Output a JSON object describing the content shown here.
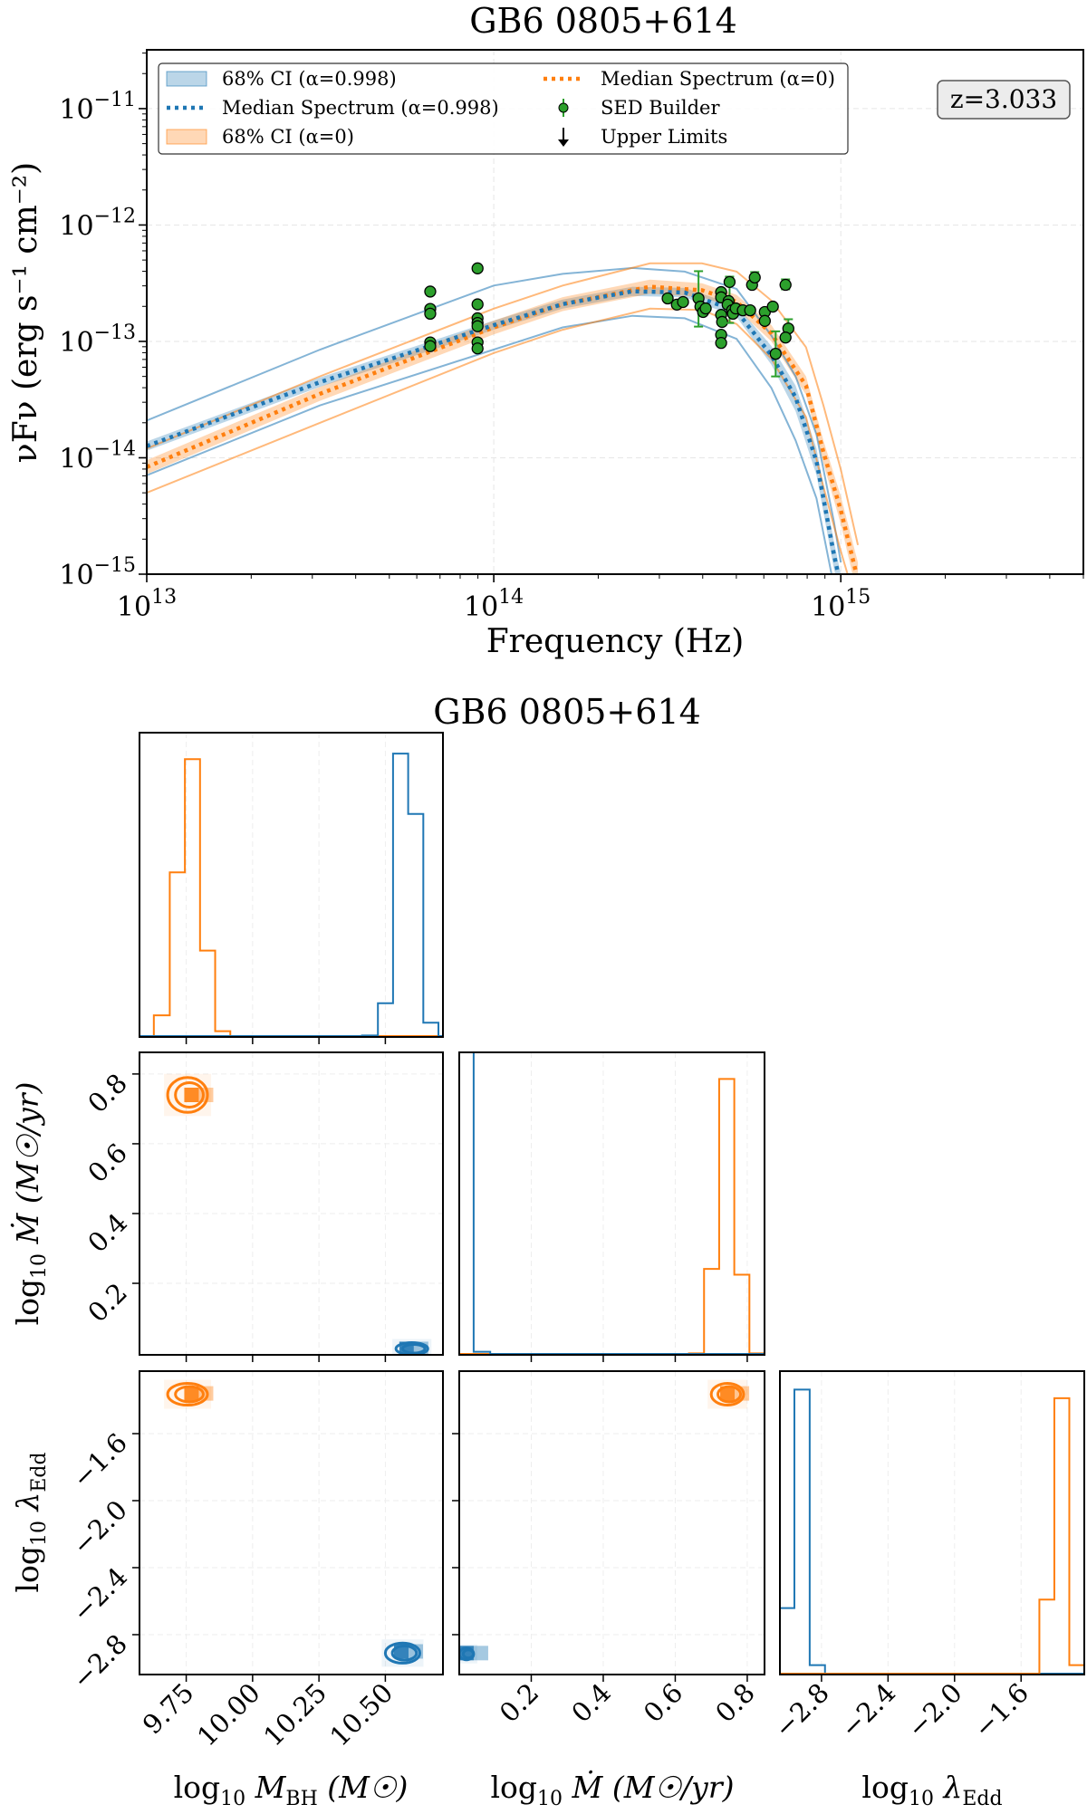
{
  "chart_data": [
    {
      "type": "line",
      "title": "GB6 0805+614",
      "xlabel": "Frequency (Hz)",
      "ylabel": "νFν (erg s⁻¹ cm⁻²)",
      "x_scale": "log",
      "y_scale": "log",
      "xlim": [
        10000000000000.0,
        5000000000000000.0
      ],
      "ylim": [
        1e-15,
        3.2e-11
      ],
      "x_ticks": [
        {
          "value": 10000000000000.0,
          "base": "10",
          "exp": "13"
        },
        {
          "value": 100000000000000.0,
          "base": "10",
          "exp": "14"
        },
        {
          "value": 1000000000000000.0,
          "base": "10",
          "exp": "15"
        }
      ],
      "y_ticks": [
        {
          "value": 1e-15,
          "base": "10",
          "exp": "−15"
        },
        {
          "value": 1e-14,
          "base": "10",
          "exp": "−14"
        },
        {
          "value": 1e-13,
          "base": "10",
          "exp": "−13"
        },
        {
          "value": 1e-12,
          "base": "10",
          "exp": "−12"
        },
        {
          "value": 1e-11,
          "base": "10",
          "exp": "−11"
        }
      ],
      "grid": true,
      "legend_placement": "upper-left",
      "annotation": "z=3.033",
      "colors": {
        "blue": "#1f77b4",
        "orange": "#ff7f0e",
        "green": "#2ca02c"
      },
      "legend": [
        {
          "label": "68% CI (α=0.998)",
          "kind": "band",
          "color": "#1f77b4"
        },
        {
          "label": "Median Spectrum (α=0.998)",
          "kind": "dotted",
          "color": "#1f77b4"
        },
        {
          "label": "68% CI (α=0)",
          "kind": "band",
          "color": "#ff7f0e"
        },
        {
          "label": "Median Spectrum (α=0)",
          "kind": "dotted",
          "color": "#ff7f0e"
        },
        {
          "label": "SED Builder",
          "kind": "errorpoint",
          "color": "#2ca02c"
        },
        {
          "label": "Upper Limits",
          "kind": "arrow",
          "color": "#000000"
        }
      ],
      "models": [
        {
          "name": "α=0.998",
          "color": "#1f77b4",
          "x": [
            10000000000000.0,
            31600000000000.0,
            100000000000000.0,
            158000000000000.0,
            251000000000000.0,
            355000000000000.0,
            501000000000000.0,
            631000000000000.0,
            741000000000000.0,
            851000000000000.0,
            955000000000000.0,
            1000000000000000.0
          ],
          "median": [
            1.26e-14,
            4.47e-14,
            1.38e-13,
            2.09e-13,
            2.69e-13,
            2.63e-13,
            1.82e-13,
            7.59e-14,
            3.31e-14,
            9.33e-15,
            1.48e-15,
            7.9e-16
          ],
          "ci68_lower": [
            1.15e-14,
            4.07e-14,
            1.26e-13,
            1.91e-13,
            2.45e-13,
            2.4e-13,
            1.62e-13,
            6.31e-14,
            2.51e-14,
            7.08e-15,
            1.12e-15,
            6.3e-16
          ],
          "ci68_upper": [
            1.38e-14,
            4.9e-14,
            1.51e-13,
            2.29e-13,
            2.95e-13,
            2.88e-13,
            2.04e-13,
            9.12e-14,
            4.17e-14,
            1.2e-14,
            1.91e-15,
            1e-15
          ],
          "outer_upper": [
            2.09e-14,
            8.51e-14,
            3.02e-13,
            3.8e-13,
            4.27e-13,
            3.98e-13,
            2.82e-13,
            1.12e-13,
            5.01e-14,
            1.58e-14,
            2.82e-15,
            1.26e-15
          ],
          "outer_lower": [
            7.08e-15,
            2.82e-14,
            8.51e-14,
            1.32e-13,
            1.66e-13,
            1.58e-13,
            1.05e-13,
            3.98e-14,
            1.41e-14,
            4.47e-15,
            7.9e-16,
            5e-16
          ]
        },
        {
          "name": "α=0",
          "color": "#ff7f0e",
          "x": [
            10000000000000.0,
            31600000000000.0,
            100000000000000.0,
            158000000000000.0,
            282000000000000.0,
            398000000000000.0,
            501000000000000.0,
            631000000000000.0,
            794000000000000.0,
            891000000000000.0,
            1000000000000000.0,
            1120000000000000.0
          ],
          "median": [
            8.32e-15,
            3.55e-14,
            1.32e-13,
            2.09e-13,
            2.95e-13,
            2.75e-13,
            2.19e-13,
            1.17e-13,
            4.17e-14,
            1.12e-14,
            3.55e-15,
            8.9e-16
          ],
          "ci68_lower": [
            7.24e-15,
            3.09e-14,
            1.15e-13,
            1.82e-13,
            2.57e-13,
            2.4e-13,
            1.91e-13,
            1e-13,
            3.47e-14,
            8.91e-15,
            2.69e-15,
            6.3e-16
          ],
          "ci68_upper": [
            9.55e-15,
            4.07e-14,
            1.51e-13,
            2.4e-13,
            3.39e-13,
            3.16e-13,
            2.51e-13,
            1.38e-13,
            5.01e-14,
            1.41e-14,
            4.68e-15,
            1.26e-15
          ],
          "outer_upper": [
            1.2e-14,
            5.01e-14,
            1.91e-13,
            3.02e-13,
            4.68e-13,
            4.68e-13,
            3.98e-13,
            2.24e-13,
            8.91e-14,
            2.82e-14,
            7.94e-15,
            1.78e-15
          ],
          "outer_lower": [
            5.01e-15,
            2e-14,
            7.94e-14,
            1.26e-13,
            1.91e-13,
            1.86e-13,
            1.41e-13,
            7.08e-14,
            2.24e-14,
            5.62e-15,
            1.58e-15,
            5e-16
          ]
        }
      ],
      "sed_points": [
        {
          "x": 65600000000000.0,
          "y": 2.68e-13
        },
        {
          "x": 65600000000000.0,
          "y": 1.9e-13
        },
        {
          "x": 65600000000000.0,
          "y": 1.73e-13
        },
        {
          "x": 65600000000000.0,
          "y": 9.8e-14
        },
        {
          "x": 65600000000000.0,
          "y": 9.1e-14
        },
        {
          "x": 89800000000000.0,
          "y": 4.24e-13
        },
        {
          "x": 89800000000000.0,
          "y": 2.08e-13
        },
        {
          "x": 89800000000000.0,
          "y": 1.58e-13
        },
        {
          "x": 89800000000000.0,
          "y": 1.44e-13
        },
        {
          "x": 89800000000000.0,
          "y": 1.35e-13
        },
        {
          "x": 89800000000000.0,
          "y": 9.8e-14
        },
        {
          "x": 89800000000000.0,
          "y": 8.7e-14
        },
        {
          "x": 317000000000000.0,
          "y": 2.34e-13
        },
        {
          "x": 337000000000000.0,
          "y": 2.07e-13
        },
        {
          "x": 351000000000000.0,
          "y": 2.18e-13
        },
        {
          "x": 389000000000000.0,
          "y": 2.34e-13,
          "err": [
            1.34e-13,
            4.01e-13
          ]
        },
        {
          "x": 394000000000000.0,
          "y": 1.99e-13
        },
        {
          "x": 401000000000000.0,
          "y": 1.79e-13
        },
        {
          "x": 408000000000000.0,
          "y": 1.92e-13
        },
        {
          "x": 452000000000000.0,
          "y": 2.65e-13
        },
        {
          "x": 452000000000000.0,
          "y": 2.39e-13
        },
        {
          "x": 452000000000000.0,
          "y": 1.69e-13
        },
        {
          "x": 455000000000000.0,
          "y": 1.47e-13
        },
        {
          "x": 452000000000000.0,
          "y": 1.14e-13
        },
        {
          "x": 452000000000000.0,
          "y": 9.7e-14
        },
        {
          "x": 478000000000000.0,
          "y": 3.24e-13,
          "err": [
            1.44e-13,
            3.6e-13
          ]
        },
        {
          "x": 475000000000000.0,
          "y": 2.22e-13
        },
        {
          "x": 472000000000000.0,
          "y": 2.07e-13
        },
        {
          "x": 486000000000000.0,
          "y": 1.85e-13
        },
        {
          "x": 489000000000000.0,
          "y": 1.73e-13
        },
        {
          "x": 498000000000000.0,
          "y": 1.92e-13
        },
        {
          "x": 522000000000000.0,
          "y": 1.85e-13
        },
        {
          "x": 548000000000000.0,
          "y": 1.85e-13
        },
        {
          "x": 555000000000000.0,
          "y": 3.06e-13
        },
        {
          "x": 565000000000000.0,
          "y": 3.54e-13,
          "err": [
            3.35e-13,
            3.94e-13
          ]
        },
        {
          "x": 604000000000000.0,
          "y": 1.79e-13
        },
        {
          "x": 604000000000000.0,
          "y": 1.5e-13
        },
        {
          "x": 637000000000000.0,
          "y": 1.99e-13
        },
        {
          "x": 693000000000000.0,
          "y": 3.06e-13,
          "err": [
            2.8e-13,
            3.41e-13
          ]
        },
        {
          "x": 706000000000000.0,
          "y": 1.29e-13,
          "err": [
            1.22e-13,
            1.55e-13
          ]
        },
        {
          "x": 693000000000000.0,
          "y": 1.08e-13
        },
        {
          "x": 649000000000000.0,
          "y": 7.83e-14,
          "err": [
            5e-14,
            1.22e-13
          ]
        }
      ],
      "upper_limits": []
    },
    {
      "type": "corner",
      "title": "GB6 0805+614",
      "grid": true,
      "colors": {
        "alpha_0998": "#1f77b4",
        "alpha_0": "#ff7f0e"
      },
      "parameters": [
        {
          "label": {
            "pre": "log",
            "sub": "10",
            "var": " M",
            "vsub": "BH",
            "post": " (M☉)"
          },
          "range": [
            9.574,
            10.717
          ],
          "ticks": [
            9.75,
            10.0,
            10.25,
            10.5
          ],
          "tick_labels": [
            "9.75",
            "10.00",
            "10.25",
            "10.50"
          ]
        },
        {
          "label": {
            "pre": "log",
            "sub": "10",
            "var": " Ṁ",
            "vsub": "",
            "post": " (M☉/yr)"
          },
          "range": [
            0.0,
            0.848
          ],
          "yrange": [
            -0.005,
            0.862
          ],
          "ticks": [
            0.2,
            0.4,
            0.6,
            0.8
          ],
          "tick_labels": [
            "0.2",
            "0.4",
            "0.6",
            "0.8"
          ]
        },
        {
          "label": {
            "pre": "log",
            "sub": "10",
            "var": " λ",
            "vsub": "Edd",
            "post": ""
          },
          "range": [
            -3.05,
            -1.22
          ],
          "yrange": [
            -3.038,
            -1.227
          ],
          "ticks": [
            -2.8,
            -2.4,
            -2.0,
            -1.6
          ],
          "tick_labels": [
            "−2.8",
            "−2.4",
            "−2.0",
            "−1.6"
          ]
        }
      ],
      "histograms": [
        {
          "param": 0,
          "series": [
            {
              "color": "#ff7f0e",
              "edges": [
                9.628,
                9.688,
                9.745,
                9.802,
                9.859,
                9.916
              ],
              "heights": [
                0.071,
                0.541,
                0.913,
                0.284,
                0.019
              ]
            },
            {
              "color": "#1f77b4",
              "edges": [
                10.412,
                10.472,
                10.529,
                10.586,
                10.643,
                10.7
              ],
              "heights": [
                0.005,
                0.111,
                0.931,
                0.733,
                0.047
              ]
            }
          ]
        },
        {
          "param": 1,
          "series": [
            {
              "color": "#ff7f0e",
              "edges": [
                0.638,
                0.68,
                0.722,
                0.764,
                0.806,
                0.848
              ],
              "heights": [
                0.005,
                0.284,
                0.912,
                0.265,
                0.005
              ]
            },
            {
              "color": "#1f77b4",
              "edges": [
                0.0,
                0.04,
                0.086
              ],
              "heights": [
                1.2,
                0.01
              ]
            }
          ]
        },
        {
          "param": 2,
          "series": [
            {
              "color": "#1f77b4",
              "edges": [
                -3.05,
                -2.963,
                -2.871,
                -2.779
              ],
              "heights": [
                0.219,
                0.939,
                0.031
              ]
            },
            {
              "color": "#ff7f0e",
              "edges": [
                -1.49,
                -1.4,
                -1.31,
                -1.22
              ],
              "heights": [
                0.247,
                0.911,
                0.031
              ]
            }
          ]
        }
      ],
      "pairs": [
        {
          "x_param": 0,
          "y_param": 1,
          "series": [
            {
              "color": "#ff7f0e",
              "center": [
                9.77,
                0.74
              ],
              "x_extent": [
                9.68,
                9.83
              ],
              "y_extent": [
                0.69,
                0.79
              ]
            },
            {
              "color": "#1f77b4",
              "center": [
                10.58,
                0.012
              ],
              "x_extent": [
                10.54,
                10.66
              ],
              "y_extent": [
                -0.005,
                0.03
              ]
            }
          ]
        },
        {
          "x_param": 0,
          "y_param": 2,
          "series": [
            {
              "color": "#ff7f0e",
              "center": [
                9.77,
                -1.36
              ],
              "x_extent": [
                9.68,
                9.83
              ],
              "y_extent": [
                -1.43,
                -1.3
              ]
            },
            {
              "color": "#1f77b4",
              "center": [
                10.56,
                -2.9
              ],
              "x_extent": [
                10.5,
                10.63
              ],
              "y_extent": [
                -2.97,
                -2.85
              ]
            }
          ]
        },
        {
          "x_param": 1,
          "y_param": 2,
          "series": [
            {
              "color": "#ff7f0e",
              "center": [
                0.745,
                -1.36
              ],
              "x_extent": [
                0.7,
                0.79
              ],
              "y_extent": [
                -1.43,
                -1.3
              ]
            },
            {
              "color": "#1f77b4",
              "center": [
                0.02,
                -2.91
              ],
              "x_extent": [
                0.0,
                0.04
              ],
              "y_extent": [
                -2.95,
                -2.88
              ]
            }
          ]
        }
      ]
    }
  ]
}
